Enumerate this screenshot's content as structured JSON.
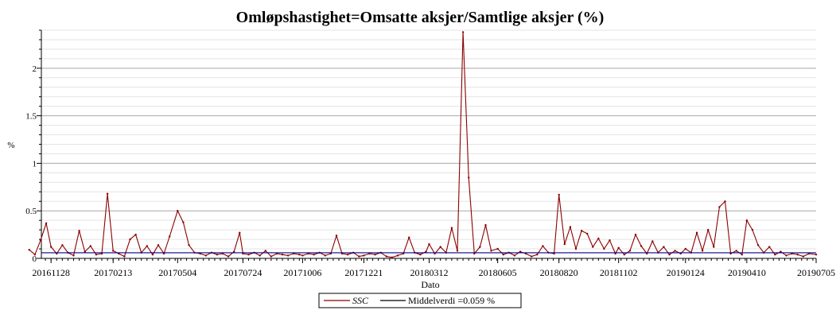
{
  "chart_data": {
    "type": "line",
    "title": "Omløpshastighet=Omsatte aksjer/Samtlige aksjer (%)",
    "xlabel": "Dato",
    "ylabel": "%",
    "ylim": [
      0,
      2.4
    ],
    "y_ticks": [
      {
        "value": 0,
        "label": "0"
      },
      {
        "value": 0.5,
        "label": "0.5"
      },
      {
        "value": 1,
        "label": "1"
      },
      {
        "value": 1.5,
        "label": "1.5"
      },
      {
        "value": 2,
        "label": "2"
      }
    ],
    "x_tick_labels": [
      "20161128",
      "20170213",
      "20170504",
      "20170724",
      "20171006",
      "20171221",
      "20180312",
      "20180605",
      "20180820",
      "20181102",
      "20190124",
      "20190410",
      "20190705"
    ],
    "grid": true,
    "legend_position": "bottom",
    "series": [
      {
        "name": "SSC",
        "color": "#8b0000",
        "x": [
          "20161101",
          "20161108",
          "20161115",
          "20161122",
          "20161128",
          "20161205",
          "20161212",
          "20161219",
          "20161226",
          "20170102",
          "20170109",
          "20170116",
          "20170123",
          "20170130",
          "20170206",
          "20170213",
          "20170220",
          "20170227",
          "20170306",
          "20170313",
          "20170320",
          "20170327",
          "20170403",
          "20170410",
          "20170417",
          "20170424",
          "20170504",
          "20170511",
          "20170518",
          "20170525",
          "20170601",
          "20170608",
          "20170615",
          "20170622",
          "20170629",
          "20170706",
          "20170713",
          "20170720",
          "20170724",
          "20170731",
          "20170807",
          "20170814",
          "20170821",
          "20170828",
          "20170904",
          "20170911",
          "20170918",
          "20170925",
          "20171002",
          "20171006",
          "20171013",
          "20171020",
          "20171027",
          "20171103",
          "20171110",
          "20171117",
          "20171124",
          "20171201",
          "20171208",
          "20171215",
          "20171221",
          "20171228",
          "20180104",
          "20180111",
          "20180118",
          "20180125",
          "20180201",
          "20180208",
          "20180215",
          "20180222",
          "20180301",
          "20180308",
          "20180312",
          "20180319",
          "20180326",
          "20180402",
          "20180409",
          "20180416",
          "20180423",
          "20180430",
          "20180507",
          "20180514",
          "20180521",
          "20180528",
          "20180605",
          "20180612",
          "20180619",
          "20180626",
          "20180703",
          "20180710",
          "20180717",
          "20180724",
          "20180731",
          "20180807",
          "20180814",
          "20180820",
          "20180827",
          "20180903",
          "20180910",
          "20180917",
          "20180924",
          "20181001",
          "20181008",
          "20181015",
          "20181022",
          "20181029",
          "20181102",
          "20181109",
          "20181116",
          "20181123",
          "20181130",
          "20181207",
          "20181214",
          "20181221",
          "20181228",
          "20190104",
          "20190111",
          "20190118",
          "20190124",
          "20190131",
          "20190207",
          "20190214",
          "20190221",
          "20190228",
          "20190307",
          "20190314",
          "20190321",
          "20190328",
          "20190404",
          "20190410",
          "20190417",
          "20190424",
          "20190501",
          "20190508",
          "20190515",
          "20190522",
          "20190529",
          "20190605",
          "20190612",
          "20190619",
          "20190626",
          "20190705"
        ],
        "values": [
          0.09,
          0.04,
          0.19,
          0.37,
          0.12,
          0.05,
          0.14,
          0.06,
          0.03,
          0.29,
          0.07,
          0.13,
          0.04,
          0.05,
          0.68,
          0.08,
          0.05,
          0.02,
          0.2,
          0.25,
          0.06,
          0.13,
          0.04,
          0.14,
          0.05,
          0.23,
          0.5,
          0.38,
          0.14,
          0.06,
          0.05,
          0.03,
          0.06,
          0.04,
          0.05,
          0.02,
          0.07,
          0.27,
          0.05,
          0.04,
          0.06,
          0.03,
          0.08,
          0.02,
          0.05,
          0.04,
          0.03,
          0.05,
          0.04,
          0.03,
          0.05,
          0.04,
          0.06,
          0.03,
          0.05,
          0.24,
          0.05,
          0.04,
          0.06,
          0.02,
          0.03,
          0.05,
          0.04,
          0.06,
          0.02,
          0.01,
          0.03,
          0.05,
          0.22,
          0.06,
          0.04,
          0.07,
          0.15,
          0.05,
          0.12,
          0.06,
          0.32,
          0.08,
          2.38,
          0.85,
          0.05,
          0.12,
          0.35,
          0.08,
          0.1,
          0.04,
          0.06,
          0.03,
          0.07,
          0.05,
          0.02,
          0.04,
          0.13,
          0.06,
          0.05,
          0.67,
          0.15,
          0.33,
          0.1,
          0.29,
          0.26,
          0.12,
          0.21,
          0.1,
          0.19,
          0.05,
          0.11,
          0.04,
          0.08,
          0.25,
          0.13,
          0.05,
          0.18,
          0.06,
          0.12,
          0.04,
          0.08,
          0.05,
          0.1,
          0.06,
          0.27,
          0.08,
          0.3,
          0.12,
          0.54,
          0.6,
          0.05,
          0.08,
          0.04,
          0.4,
          0.3,
          0.14,
          0.06,
          0.12,
          0.04,
          0.07,
          0.03,
          0.05,
          0.04,
          0.02,
          0.05,
          0.04
        ]
      },
      {
        "name": "Middelverdi =0.059 %",
        "color": "#00008b",
        "constant": 0.059
      }
    ]
  }
}
